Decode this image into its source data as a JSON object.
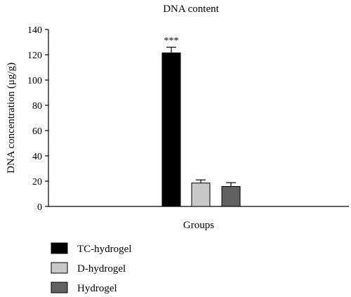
{
  "chart_data": {
    "type": "bar",
    "title": "DNA content",
    "xlabel": "Groups",
    "ylabel": "DNA concentration (μg/g)",
    "ylim": [
      0,
      140
    ],
    "yticks": [
      0,
      20,
      40,
      60,
      80,
      100,
      120,
      140
    ],
    "categories": [
      "TC-hydrogel",
      "D-hydrogel",
      "Hydrogel"
    ],
    "values": [
      121.5,
      18.5,
      15.8
    ],
    "errors": [
      4.5,
      2.5,
      3.0
    ],
    "colors": [
      "#000000",
      "#c8c8c8",
      "#616161"
    ],
    "annotations": [
      {
        "category": "TC-hydrogel",
        "text": "***"
      }
    ],
    "legend_position": "bottom-left",
    "grid": false
  }
}
